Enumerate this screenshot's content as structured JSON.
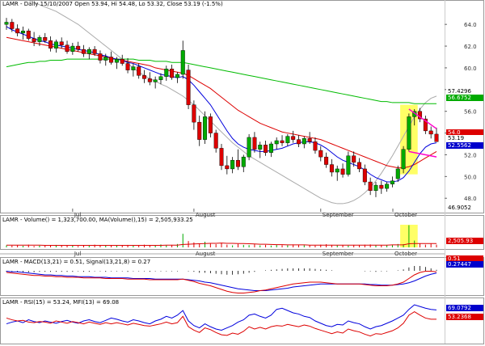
{
  "header": {
    "main": "LAMR - Daily 15/10/2007 Open 53.94, Hi 54.48, Lo 53.32, Close 53.19 (-1.5%)",
    "volume": "LAMR - Volume() = 1,323,700.00, MA(Volume(),15) = 2,505,933.25",
    "macd": "LAMR - MACD(13,21) = 0.51, Signal(13,21,8) = 0.27",
    "rsi": "LAMR - RSI(15) = 53.24, MFI(13) = 69.08"
  },
  "months": [
    "Jul",
    "August",
    "September",
    "October"
  ],
  "price_ticks": [
    "64.0",
    "62.0",
    "60.0",
    "58.0",
    "56.0",
    "54.0",
    "52.0",
    "50.0",
    "48.0"
  ],
  "price_tags": [
    {
      "text": "57.4296",
      "bg": "#ffffff",
      "fg": "#000000"
    },
    {
      "text": "56.6752",
      "bg": "#00aa00",
      "fg": "#ffffff"
    },
    {
      "text": "54.0",
      "bg": "#dd0000",
      "fg": "#ffffff"
    },
    {
      "text": "53.19",
      "bg": "#ffffff",
      "fg": "#000000"
    },
    {
      "text": "52.5562",
      "bg": "#0000cc",
      "fg": "#ffffff"
    },
    {
      "text": "46.9052",
      "bg": "#ffffff",
      "fg": "#000000"
    }
  ],
  "volume_tag": {
    "text": "2,505.93",
    "bg": "#dd0000",
    "fg": "#ffffff"
  },
  "macd_tags": [
    {
      "text": "0.51",
      "bg": "#dd0000",
      "fg": "#ffffff"
    },
    {
      "text": "0.27447",
      "bg": "#0000cc",
      "fg": "#ffffff"
    }
  ],
  "rsi_tags": [
    {
      "text": "69.0792",
      "bg": "#0000cc",
      "fg": "#ffffff"
    },
    {
      "text": "53.2368",
      "bg": "#dd0000",
      "fg": "#ffffff"
    }
  ],
  "colors": {
    "up": "#00aa00",
    "down": "#dd0000",
    "ma_fast": "#0000dd",
    "ma_mid": "#dd0000",
    "ma_slow": "#00bb00",
    "ma_long": "#aaaaaa",
    "highlight": "#ffff66",
    "trend": "#ff00cc"
  },
  "chart_data": {
    "type": "candlestick",
    "ylim": [
      46.9,
      65.5
    ],
    "ohlc": [
      [
        64.0,
        64.6,
        63.5,
        64.2
      ],
      [
        64.2,
        64.5,
        63.3,
        63.6
      ],
      [
        63.6,
        64.0,
        62.9,
        63.2
      ],
      [
        63.2,
        63.8,
        62.6,
        63.4
      ],
      [
        63.4,
        63.6,
        62.5,
        62.7
      ],
      [
        62.7,
        63.3,
        62.0,
        62.4
      ],
      [
        62.4,
        63.0,
        62.0,
        62.8
      ],
      [
        62.8,
        63.2,
        62.3,
        62.5
      ],
      [
        62.5,
        62.9,
        61.5,
        61.8
      ],
      [
        61.8,
        62.6,
        61.4,
        62.4
      ],
      [
        62.4,
        62.8,
        61.8,
        62.1
      ],
      [
        62.1,
        62.5,
        61.3,
        61.5
      ],
      [
        61.5,
        62.3,
        61.2,
        62.0
      ],
      [
        62.0,
        62.4,
        61.5,
        61.7
      ],
      [
        61.7,
        62.1,
        61.0,
        61.3
      ],
      [
        61.3,
        61.9,
        60.8,
        61.7
      ],
      [
        61.7,
        62.0,
        61.1,
        61.3
      ],
      [
        61.3,
        61.6,
        60.4,
        60.7
      ],
      [
        60.7,
        61.3,
        60.2,
        61.0
      ],
      [
        61.0,
        61.5,
        60.3,
        60.5
      ],
      [
        60.5,
        61.0,
        59.9,
        60.8
      ],
      [
        60.8,
        61.2,
        60.2,
        60.4
      ],
      [
        60.4,
        60.9,
        59.5,
        59.8
      ],
      [
        59.8,
        60.4,
        59.2,
        60.1
      ],
      [
        60.1,
        60.4,
        59.0,
        59.3
      ],
      [
        59.3,
        59.8,
        58.6,
        59.0
      ],
      [
        59.0,
        59.6,
        58.4,
        58.7
      ],
      [
        58.7,
        59.2,
        58.1,
        58.9
      ],
      [
        58.9,
        59.5,
        58.5,
        59.2
      ],
      [
        59.2,
        60.2,
        58.8,
        59.9
      ],
      [
        59.9,
        60.3,
        58.9,
        59.1
      ],
      [
        59.1,
        59.6,
        58.6,
        59.4
      ],
      [
        59.4,
        62.5,
        59.0,
        61.6
      ],
      [
        59.8,
        60.3,
        56.2,
        56.6
      ],
      [
        56.6,
        57.0,
        54.3,
        55.0
      ],
      [
        55.0,
        55.6,
        52.8,
        53.4
      ],
      [
        53.4,
        56.0,
        53.0,
        55.5
      ],
      [
        55.5,
        55.8,
        53.6,
        54.0
      ],
      [
        54.0,
        54.3,
        52.2,
        52.6
      ],
      [
        52.6,
        53.0,
        50.6,
        51.0
      ],
      [
        51.0,
        51.9,
        50.2,
        50.7
      ],
      [
        50.7,
        51.8,
        50.3,
        51.5
      ],
      [
        51.5,
        52.5,
        50.6,
        50.9
      ],
      [
        50.9,
        52.0,
        50.4,
        51.8
      ],
      [
        51.8,
        53.9,
        51.5,
        53.6
      ],
      [
        53.6,
        54.1,
        52.2,
        52.5
      ],
      [
        52.5,
        53.2,
        51.7,
        52.9
      ],
      [
        52.9,
        53.3,
        51.9,
        52.2
      ],
      [
        52.2,
        53.2,
        51.8,
        53.0
      ],
      [
        53.0,
        53.6,
        52.5,
        53.3
      ],
      [
        53.3,
        53.8,
        52.8,
        53.1
      ],
      [
        53.1,
        53.9,
        52.8,
        53.7
      ],
      [
        53.7,
        54.2,
        53.1,
        53.4
      ],
      [
        53.4,
        53.8,
        52.7,
        53.0
      ],
      [
        53.0,
        53.7,
        52.6,
        53.5
      ],
      [
        53.5,
        54.1,
        53.0,
        53.2
      ],
      [
        53.2,
        53.6,
        52.1,
        52.4
      ],
      [
        52.4,
        52.8,
        51.4,
        51.8
      ],
      [
        51.8,
        52.2,
        50.8,
        51.1
      ],
      [
        51.1,
        51.6,
        50.0,
        50.4
      ],
      [
        50.4,
        51.0,
        49.6,
        50.7
      ],
      [
        50.7,
        51.2,
        49.9,
        50.2
      ],
      [
        50.2,
        52.3,
        50.0,
        51.9
      ],
      [
        51.9,
        52.3,
        50.9,
        51.3
      ],
      [
        51.3,
        51.7,
        50.4,
        50.7
      ],
      [
        50.7,
        51.1,
        49.2,
        49.5
      ],
      [
        49.5,
        49.9,
        48.3,
        48.7
      ],
      [
        48.7,
        49.5,
        48.1,
        49.2
      ],
      [
        49.2,
        49.6,
        48.4,
        48.9
      ],
      [
        48.9,
        49.5,
        48.6,
        49.3
      ],
      [
        49.3,
        50.0,
        49.0,
        49.6
      ],
      [
        49.8,
        51.0,
        49.5,
        50.7
      ],
      [
        50.7,
        52.8,
        50.3,
        52.5
      ],
      [
        52.5,
        55.8,
        52.3,
        55.5
      ],
      [
        55.5,
        56.2,
        54.7,
        56.0
      ],
      [
        56.0,
        56.3,
        55.0,
        55.3
      ],
      [
        55.3,
        55.6,
        53.9,
        54.2
      ],
      [
        54.2,
        54.6,
        53.5,
        53.9
      ],
      [
        53.9,
        54.5,
        53.3,
        53.2
      ]
    ],
    "highlight_range": [
      72,
      74
    ],
    "ma_fast": [
      63.8,
      63.5,
      63.3,
      63.1,
      62.9,
      62.7,
      62.5,
      62.4,
      62.2,
      62.1,
      62.0,
      61.9,
      61.8,
      61.7,
      61.6,
      61.5,
      61.4,
      61.2,
      61.1,
      60.9,
      60.8,
      60.7,
      60.5,
      60.4,
      60.2,
      60.0,
      59.8,
      59.6,
      59.4,
      59.3,
      59.2,
      59.1,
      59.2,
      58.9,
      58.4,
      57.8,
      57.2,
      56.6,
      55.8,
      55.0,
      54.2,
      53.5,
      53.0,
      52.7,
      52.5,
      52.4,
      52.3,
      52.3,
      52.4,
      52.5,
      52.6,
      52.8,
      53.0,
      53.1,
      53.2,
      53.2,
      53.1,
      52.9,
      52.6,
      52.2,
      51.8,
      51.5,
      51.3,
      51.1,
      50.9,
      50.6,
      50.2,
      49.9,
      49.7,
      49.5,
      49.5,
      49.6,
      49.9,
      50.5,
      51.3,
      52.1,
      52.7,
      53.0,
      53.1
    ],
    "ma_mid": [
      62.8,
      62.7,
      62.6,
      62.5,
      62.4,
      62.3,
      62.2,
      62.1,
      62.0,
      61.9,
      61.8,
      61.7,
      61.6,
      61.5,
      61.4,
      61.3,
      61.2,
      61.1,
      61.0,
      60.9,
      60.8,
      60.7,
      60.6,
      60.5,
      60.4,
      60.3,
      60.2,
      60.0,
      59.9,
      59.8,
      59.7,
      59.6,
      59.5,
      59.3,
      59.0,
      58.7,
      58.4,
      58.1,
      57.7,
      57.3,
      56.9,
      56.5,
      56.1,
      55.8,
      55.5,
      55.2,
      54.9,
      54.7,
      54.5,
      54.3,
      54.1,
      54.0,
      53.9,
      53.8,
      53.7,
      53.6,
      53.5,
      53.4,
      53.2,
      53.0,
      52.8,
      52.6,
      52.4,
      52.2,
      52.0,
      51.8,
      51.6,
      51.4,
      51.2,
      51.0,
      50.9,
      50.8,
      50.8,
      50.9,
      51.1,
      51.4,
      51.7,
      52.0,
      52.3
    ],
    "ma_slow": [
      60.1,
      60.2,
      60.3,
      60.4,
      60.5,
      60.5,
      60.6,
      60.6,
      60.7,
      60.7,
      60.7,
      60.8,
      60.8,
      60.8,
      60.8,
      60.8,
      60.8,
      60.8,
      60.8,
      60.8,
      60.8,
      60.8,
      60.8,
      60.8,
      60.7,
      60.7,
      60.7,
      60.6,
      60.6,
      60.6,
      60.5,
      60.5,
      60.5,
      60.4,
      60.3,
      60.2,
      60.1,
      60.0,
      59.9,
      59.8,
      59.7,
      59.6,
      59.5,
      59.4,
      59.3,
      59.2,
      59.1,
      59.0,
      58.9,
      58.8,
      58.7,
      58.6,
      58.5,
      58.4,
      58.3,
      58.2,
      58.1,
      58.0,
      57.9,
      57.8,
      57.7,
      57.6,
      57.5,
      57.4,
      57.3,
      57.2,
      57.1,
      57.0,
      56.9,
      56.9,
      56.8,
      56.8,
      56.8,
      56.8,
      56.7,
      56.7,
      56.7,
      56.7,
      56.7
    ],
    "ma_long": [
      66.9,
      66.7,
      66.5,
      66.4,
      66.2,
      66.0,
      65.8,
      65.6,
      65.4,
      65.2,
      64.9,
      64.6,
      64.3,
      64.0,
      63.6,
      63.2,
      62.8,
      62.4,
      62.0,
      61.6,
      61.2,
      60.8,
      60.4,
      60.0,
      59.6,
      59.3,
      59.0,
      58.8,
      58.5,
      58.3,
      58.0,
      57.7,
      57.4,
      57.0,
      56.6,
      56.1,
      55.6,
      55.1,
      54.6,
      54.1,
      53.6,
      53.1,
      52.7,
      52.3,
      51.9,
      51.6,
      51.3,
      51.0,
      50.7,
      50.4,
      50.1,
      49.8,
      49.5,
      49.2,
      48.9,
      48.6,
      48.3,
      48.0,
      47.8,
      47.6,
      47.5,
      47.5,
      47.6,
      47.8,
      48.1,
      48.5,
      49.0,
      49.6,
      50.3,
      51.1,
      51.9,
      52.8,
      53.7,
      54.6,
      55.5,
      56.2,
      56.8,
      57.2,
      57.4
    ],
    "trend_lines": [
      [
        [
          73,
          56.2
        ],
        [
          78,
          54.4
        ]
      ],
      [
        [
          73,
          52.3
        ],
        [
          78,
          51.8
        ]
      ]
    ],
    "volume": [
      9,
      8,
      10,
      7,
      12,
      6,
      8,
      7,
      9,
      11,
      8,
      7,
      9,
      6,
      8,
      7,
      12,
      9,
      8,
      10,
      7,
      9,
      11,
      8,
      10,
      12,
      9,
      8,
      13,
      10,
      11,
      15,
      60,
      28,
      22,
      18,
      25,
      16,
      14,
      20,
      12,
      9,
      15,
      11,
      10,
      14,
      9,
      11,
      8,
      12,
      10,
      9,
      13,
      11,
      10,
      9,
      8,
      12,
      14,
      11,
      10,
      9,
      8,
      11,
      10,
      12,
      13,
      9,
      10,
      11,
      12,
      15,
      14,
      98,
      30,
      17,
      12,
      16,
      12
    ],
    "volume_ma": [
      10,
      10,
      10,
      10,
      10,
      10,
      10,
      9,
      9,
      9,
      9,
      9,
      9,
      9,
      9,
      9,
      9,
      9,
      9,
      9,
      9,
      9,
      9,
      9,
      9,
      9,
      9,
      9,
      9,
      10,
      10,
      10,
      13,
      14,
      15,
      16,
      17,
      18,
      18,
      19,
      18,
      18,
      17,
      17,
      16,
      15,
      14,
      14,
      13,
      12,
      12,
      11,
      11,
      11,
      11,
      10,
      10,
      10,
      10,
      10,
      10,
      10,
      10,
      10,
      10,
      10,
      10,
      10,
      10,
      10,
      11,
      11,
      11,
      16,
      17,
      17,
      17,
      17,
      17
    ],
    "macd": [
      0.4,
      0.3,
      0.2,
      0.1,
      0.0,
      -0.1,
      -0.1,
      -0.2,
      -0.2,
      -0.3,
      -0.3,
      -0.4,
      -0.4,
      -0.4,
      -0.5,
      -0.5,
      -0.5,
      -0.5,
      -0.6,
      -0.6,
      -0.6,
      -0.6,
      -0.7,
      -0.7,
      -0.7,
      -0.7,
      -0.8,
      -0.8,
      -0.8,
      -0.8,
      -0.8,
      -0.8,
      -0.7,
      -0.9,
      -1.1,
      -1.4,
      -1.6,
      -1.8,
      -2.1,
      -2.4,
      -2.7,
      -2.9,
      -3.0,
      -3.0,
      -2.9,
      -2.8,
      -2.6,
      -2.5,
      -2.3,
      -2.1,
      -1.9,
      -1.7,
      -1.5,
      -1.4,
      -1.3,
      -1.2,
      -1.2,
      -1.2,
      -1.3,
      -1.4,
      -1.5,
      -1.5,
      -1.5,
      -1.5,
      -1.5,
      -1.6,
      -1.7,
      -1.8,
      -1.8,
      -1.8,
      -1.7,
      -1.5,
      -1.2,
      -0.6,
      0.0,
      0.4,
      0.6,
      0.6,
      0.5
    ],
    "macd_signal": [
      0.6,
      0.5,
      0.5,
      0.4,
      0.3,
      0.2,
      0.1,
      0.0,
      0.0,
      -0.1,
      -0.1,
      -0.2,
      -0.2,
      -0.3,
      -0.3,
      -0.3,
      -0.4,
      -0.4,
      -0.4,
      -0.5,
      -0.5,
      -0.5,
      -0.5,
      -0.6,
      -0.6,
      -0.6,
      -0.6,
      -0.7,
      -0.7,
      -0.7,
      -0.7,
      -0.7,
      -0.7,
      -0.8,
      -0.9,
      -1.0,
      -1.2,
      -1.3,
      -1.5,
      -1.7,
      -1.9,
      -2.1,
      -2.3,
      -2.4,
      -2.5,
      -2.6,
      -2.6,
      -2.6,
      -2.5,
      -2.4,
      -2.3,
      -2.2,
      -2.0,
      -1.9,
      -1.8,
      -1.7,
      -1.6,
      -1.5,
      -1.5,
      -1.5,
      -1.5,
      -1.5,
      -1.5,
      -1.5,
      -1.5,
      -1.5,
      -1.6,
      -1.6,
      -1.7,
      -1.7,
      -1.7,
      -1.6,
      -1.5,
      -1.3,
      -1.0,
      -0.6,
      -0.2,
      0.1,
      0.3
    ],
    "rsi": [
      55,
      52,
      50,
      51,
      48,
      47,
      49,
      48,
      46,
      50,
      48,
      46,
      49,
      47,
      45,
      48,
      46,
      44,
      47,
      45,
      47,
      45,
      43,
      46,
      44,
      42,
      41,
      43,
      45,
      48,
      45,
      47,
      58,
      40,
      34,
      30,
      38,
      35,
      30,
      26,
      25,
      29,
      27,
      32,
      40,
      36,
      39,
      36,
      40,
      42,
      41,
      44,
      42,
      40,
      43,
      41,
      37,
      34,
      31,
      28,
      31,
      29,
      36,
      33,
      31,
      27,
      24,
      28,
      27,
      30,
      33,
      38,
      46,
      60,
      66,
      60,
      55,
      53,
      53
    ],
    "mfi": [
      45,
      48,
      50,
      47,
      52,
      49,
      47,
      50,
      48,
      46,
      49,
      51,
      48,
      46,
      50,
      52,
      49,
      47,
      51,
      55,
      53,
      50,
      48,
      52,
      50,
      47,
      45,
      50,
      53,
      58,
      55,
      60,
      68,
      50,
      42,
      38,
      45,
      40,
      36,
      34,
      38,
      42,
      48,
      52,
      60,
      62,
      58,
      55,
      60,
      70,
      72,
      68,
      64,
      62,
      58,
      56,
      50,
      46,
      42,
      40,
      44,
      43,
      50,
      47,
      45,
      40,
      36,
      40,
      42,
      46,
      50,
      55,
      60,
      70,
      78,
      75,
      72,
      70,
      69
    ]
  }
}
